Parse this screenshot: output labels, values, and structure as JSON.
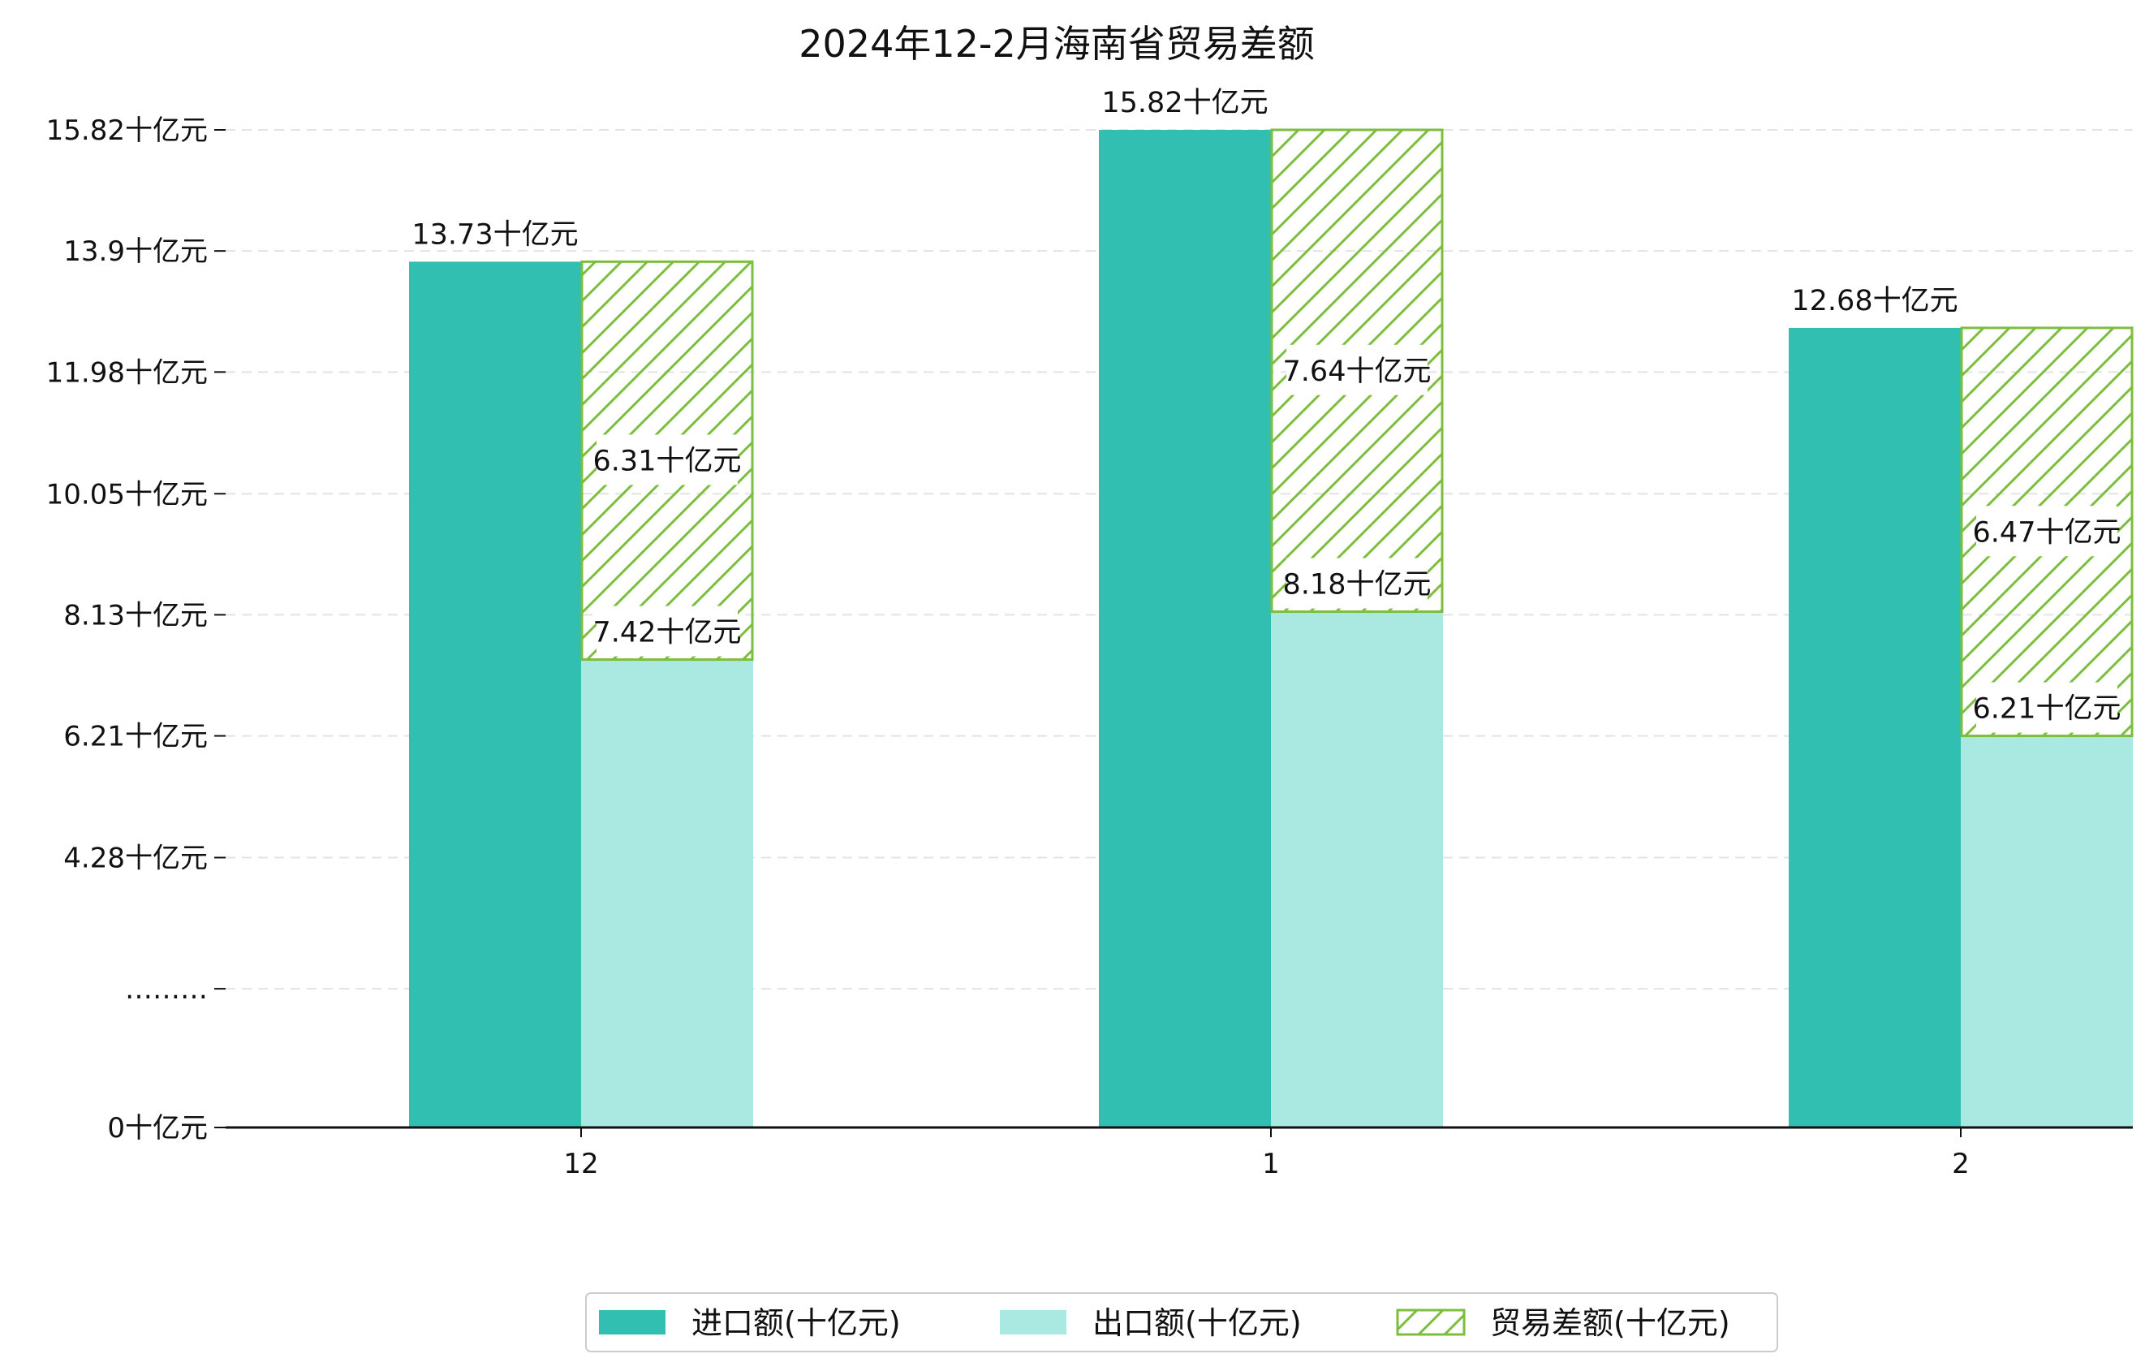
{
  "chart_data": {
    "type": "bar",
    "title": "2024年12-2月海南省贸易差额",
    "categories": [
      "12",
      "1",
      "2"
    ],
    "series": [
      {
        "name": "进口额(十亿元)",
        "values": [
          13.73,
          15.82,
          12.68
        ],
        "labels": [
          "13.73十亿元",
          "15.82十亿元",
          "12.68十亿元"
        ],
        "color": "#31bfb1"
      },
      {
        "name": "出口额(十亿元)",
        "values": [
          7.42,
          8.18,
          6.21
        ],
        "labels": [
          "7.42十亿元",
          "8.18十亿元",
          "6.21十亿元"
        ],
        "color": "#aae8e2"
      },
      {
        "name": "贸易差额(十亿元)",
        "values": [
          6.31,
          7.64,
          6.47
        ],
        "labels": [
          "6.31十亿元",
          "7.64十亿元",
          "6.47十亿元"
        ],
        "color": "#7dbe3e",
        "style": "hatched",
        "stacked_on": "出口额(十亿元)"
      }
    ],
    "yticks": [
      {
        "label": "0十亿元",
        "value": 0
      },
      {
        "label": "………",
        "value": 2.2
      },
      {
        "label": "4.28十亿元",
        "value": 4.28
      },
      {
        "label": "6.21十亿元",
        "value": 6.21
      },
      {
        "label": "8.13十亿元",
        "value": 8.13
      },
      {
        "label": "10.05十亿元",
        "value": 10.05
      },
      {
        "label": "11.98十亿元",
        "value": 11.98
      },
      {
        "label": "13.9十亿元",
        "value": 13.9
      },
      {
        "label": "15.82十亿元",
        "value": 15.82
      }
    ],
    "ylim": [
      0,
      15.82
    ],
    "xlabel": "",
    "ylabel": "",
    "grid": true,
    "legend_position": "bottom-center"
  }
}
